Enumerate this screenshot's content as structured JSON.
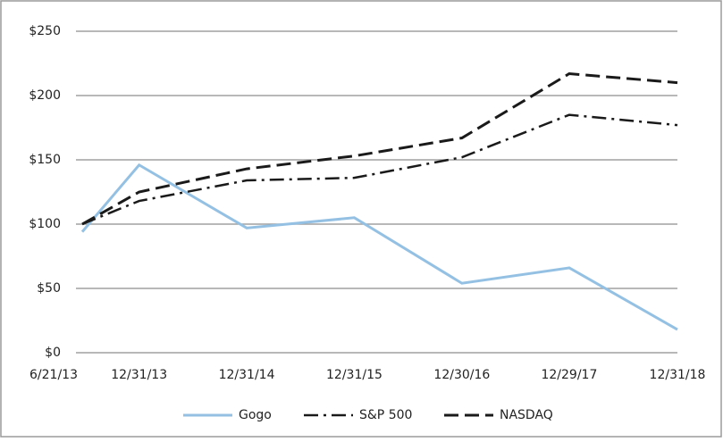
{
  "chart_data": {
    "type": "line",
    "x": [
      "6/21/13",
      "12/31/13",
      "12/31/14",
      "12/31/15",
      "12/30/16",
      "12/29/17",
      "12/31/18"
    ],
    "xlim": [
      "6/21/13",
      "12/31/18"
    ],
    "series": [
      {
        "name": "Gogo",
        "color": "#94c1e3",
        "dash": "solid",
        "values": [
          94,
          146,
          97,
          105,
          54,
          66,
          18
        ]
      },
      {
        "name": "S&P 500",
        "color": "#1a1a1a",
        "dash": "dashdot",
        "values": [
          100,
          118,
          134,
          136,
          152,
          185,
          177
        ]
      },
      {
        "name": "NASDAQ",
        "color": "#1a1a1a",
        "dash": "dashed",
        "values": [
          100,
          125,
          143,
          153,
          167,
          217,
          210
        ]
      }
    ],
    "ylim": [
      0,
      250
    ],
    "yticks": [
      {
        "value": 0,
        "label": "$0"
      },
      {
        "value": 50,
        "label": "$50"
      },
      {
        "value": 100,
        "label": "$100"
      },
      {
        "value": 150,
        "label": "$150"
      },
      {
        "value": 200,
        "label": "$200"
      },
      {
        "value": 250,
        "label": "$250"
      }
    ],
    "grid": true,
    "legend": "bottom"
  }
}
